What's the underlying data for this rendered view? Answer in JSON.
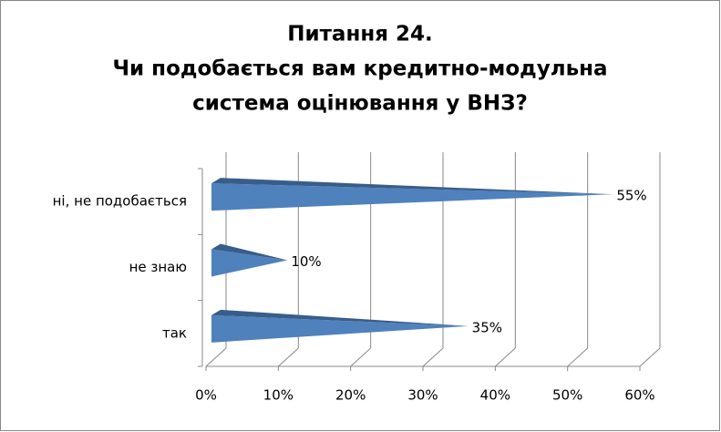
{
  "chart_data": {
    "type": "bar",
    "orientation": "horizontal",
    "title": [
      "Питання 24.",
      "Чи подобається вам кредитно-модульна",
      "система оцінювання у ВНЗ?"
    ],
    "categories": [
      "так",
      "не знаю",
      "ні, не подобається"
    ],
    "values": [
      35,
      10,
      55
    ],
    "value_labels": [
      "35%",
      "10%",
      "55%"
    ],
    "color": "#4f81bd",
    "xlim": [
      0,
      60
    ],
    "xticks": [
      {
        "value": 0,
        "label": "0%"
      },
      {
        "value": 10,
        "label": "10%"
      },
      {
        "value": 20,
        "label": "20%"
      },
      {
        "value": 30,
        "label": "30%"
      },
      {
        "value": 40,
        "label": "40%"
      },
      {
        "value": 50,
        "label": "50%"
      },
      {
        "value": 60,
        "label": "60%"
      }
    ],
    "grid": true
  }
}
